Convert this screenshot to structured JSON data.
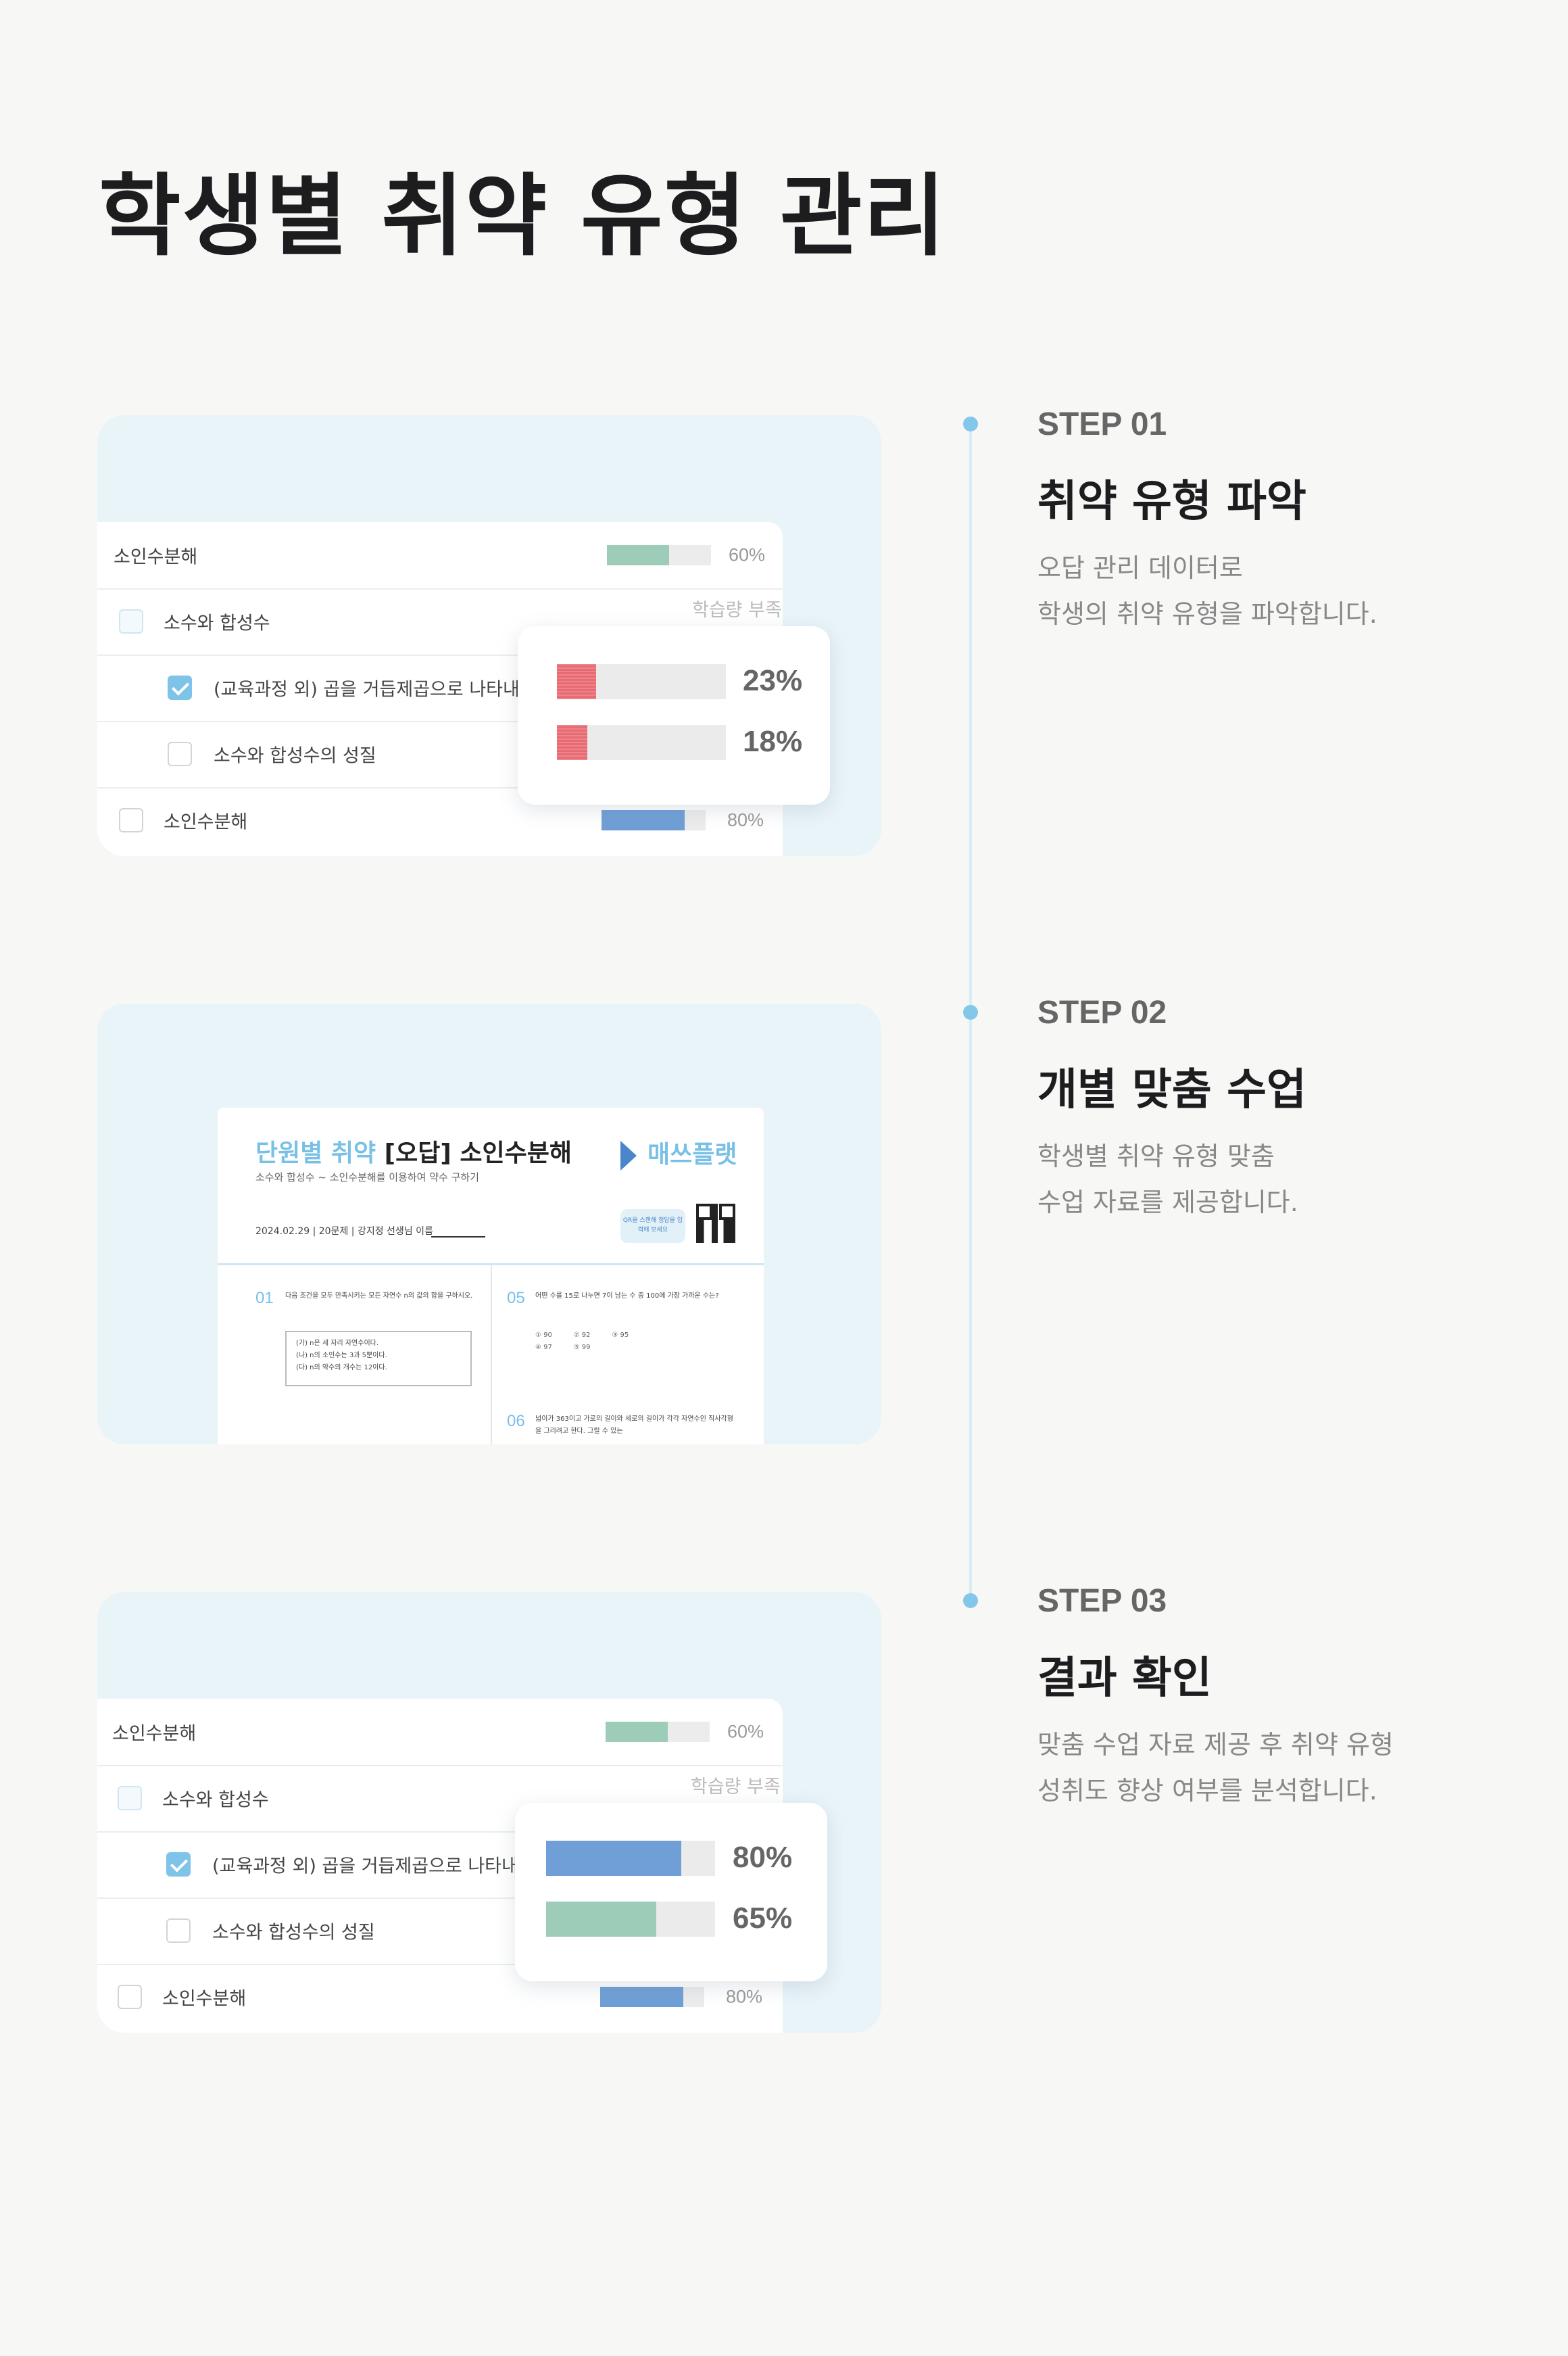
{
  "page": {
    "title": "학생별 취약 유형 관리"
  },
  "steps": [
    {
      "label": "STEP 01",
      "title": "취약 유형 파악",
      "desc": [
        "오답 관리 데이터로",
        "학생의 취약 유형을 파악합니다."
      ]
    },
    {
      "label": "STEP 02",
      "title": "개별 맞춤 수업",
      "desc": [
        "학생별 취약 유형 맞춤",
        "수업 자료를 제공합니다."
      ]
    },
    {
      "label": "STEP 03",
      "title": "결과 확인",
      "desc": [
        "맞춤 수업 자료 제공 후 취약 유형",
        "성취도 향상 여부를 분석합니다."
      ]
    }
  ],
  "panel1": {
    "rows": [
      {
        "label": "소인수분해",
        "bar_value": 0.6,
        "bar_color": "#9dcdb8",
        "pct": "60%"
      },
      {
        "label": "소수와 합성수",
        "overflow": "학습량 부족"
      },
      {
        "label": "(교육과정 외) 곱을 거듭제곱으로 나타내",
        "checked": true
      },
      {
        "label": "소수와 합성수의 성질"
      },
      {
        "label": "소인수분해",
        "bar_value": 0.8,
        "bar_color": "#6f9fd6",
        "pct": "80%"
      }
    ],
    "popup": [
      {
        "value": 0.23,
        "color": "#e86a72",
        "pct": "23%"
      },
      {
        "value": 0.18,
        "color": "#e86a72",
        "pct": "18%"
      }
    ]
  },
  "panel2": {
    "sheet": {
      "title_highlight": "단원별 취약",
      "title_rest": " [오답] 소인수분해",
      "subtitle": "소수와 합성수 ~ 소인수분해를 이용하여 약수 구하기",
      "brand": "매쓰플랫",
      "meta": "2024.02.29 | 20문제 | 강지정 선생님   이름",
      "qr_badge": "QR을 스캔해 정답을 입력해 보세요",
      "q1_num": "01",
      "q1_text": "다음 조건을 모두 만족시키는 모든 자연수 n의 값의 합을 구하시오.",
      "q1_box": [
        "(가) n은 세 자리 자연수이다.",
        "(나) n의 소인수는 3과 5뿐이다.",
        "(다) n의 약수의 개수는 12이다."
      ],
      "q5_num": "05",
      "q5_text": "어떤 수를 15로 나누면 7이 남는 수 중 100에 가장 가까운 수는?",
      "q5_choices": "① 90          ② 92          ③ 95\n④ 97          ⑤ 99",
      "q6_num": "06",
      "q6_text": "넓이가 363이고 가로의 길이와 세로의 길이가 각각 자연수인 직사각형을 그리려고 한다. 그릴 수 있는"
    }
  },
  "panel3": {
    "rows": [
      {
        "label": "소인수분해",
        "bar_value": 0.6,
        "bar_color": "#9dcdb8",
        "pct": "60%"
      },
      {
        "label": "소수와 합성수",
        "overflow": "학습량 부족"
      },
      {
        "label": "(교육과정 외) 곱을 거듭제곱으로 나타내",
        "checked": true
      },
      {
        "label": "소수와 합성수의 성질"
      },
      {
        "label": "소인수분해",
        "bar_value": 0.8,
        "bar_color": "#6f9fd6",
        "pct": "80%"
      }
    ],
    "popup": [
      {
        "value": 0.8,
        "color": "#6f9fd6",
        "pct": "80%"
      },
      {
        "value": 0.65,
        "color": "#9dcdb8",
        "pct": "65%"
      }
    ]
  }
}
